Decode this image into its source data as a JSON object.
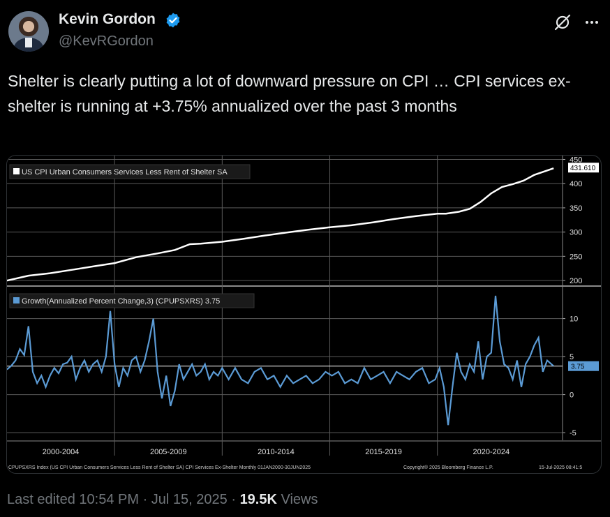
{
  "author": {
    "name": "Kevin Gordon",
    "handle": "@KevRGordon"
  },
  "tweet": {
    "text": "Shelter is clearly putting a lot of downward pressure on CPI … CPI services ex-shelter is running at +3.75% annualized over the past 3 months"
  },
  "icons": {
    "verified": "verified-badge-icon",
    "grok": "grok-icon",
    "more": "more-dots-icon"
  },
  "colors": {
    "accent_blue": "#1d9bf0",
    "index_line": "#ffffff",
    "growth_line": "#5b9bd5"
  },
  "footer": {
    "edited": "Last edited 10:54 PM",
    "date": "Jul 15, 2025",
    "views_count": "19.5K",
    "views_label": "Views"
  },
  "chart_data": {
    "type": "line",
    "period_labels": [
      "2000-2004",
      "2005-2009",
      "2010-2014",
      "2015-2019",
      "2020-2024"
    ],
    "upper_panel": {
      "legend": "US CPI Urban Consumers Services Less Rent of Shelter SA",
      "y_ticks": [
        "450",
        "400",
        "350",
        "300",
        "250",
        "200"
      ],
      "ylim": [
        190,
        455
      ],
      "last_value": "431.610",
      "series": {
        "name": "US CPI Urban Consumers Services Less Rent of Shelter SA",
        "x": [
          2000.0,
          2001.0,
          2002.0,
          2003.0,
          2004.0,
          2005.0,
          2006.0,
          2007.0,
          2007.8,
          2008.5,
          2009.0,
          2010.0,
          2011.0,
          2012.0,
          2013.0,
          2014.0,
          2015.0,
          2016.0,
          2017.0,
          2018.0,
          2019.0,
          2020.0,
          2020.4,
          2021.0,
          2021.5,
          2022.0,
          2022.5,
          2023.0,
          2023.5,
          2024.0,
          2024.5,
          2025.4
        ],
        "y": [
          200,
          210,
          215,
          222,
          229,
          236,
          248,
          256,
          263,
          275,
          276,
          280,
          286,
          293,
          299,
          305,
          310,
          314,
          320,
          327,
          333,
          338,
          338,
          342,
          348,
          362,
          380,
          393,
          399,
          406,
          418,
          431.61
        ]
      }
    },
    "lower_panel": {
      "legend": "Growth(Annualized Percent Change,3) (CPUPSXRS) 3.75",
      "y_ticks": [
        "10",
        "5",
        "0",
        "-5"
      ],
      "ylim": [
        -6,
        14
      ],
      "last_value": "3.75",
      "series": {
        "name": "Growth(Annualized Percent Change,3) (CPUPSXRS)",
        "x": [
          2000.0,
          2000.2,
          2000.4,
          2000.6,
          2000.8,
          2001.0,
          2001.2,
          2001.4,
          2001.6,
          2001.8,
          2002.0,
          2002.2,
          2002.4,
          2002.6,
          2002.8,
          2003.0,
          2003.2,
          2003.4,
          2003.6,
          2003.8,
          2004.0,
          2004.2,
          2004.4,
          2004.6,
          2004.8,
          2005.0,
          2005.2,
          2005.4,
          2005.6,
          2005.8,
          2006.0,
          2006.2,
          2006.4,
          2006.6,
          2006.8,
          2007.0,
          2007.2,
          2007.4,
          2007.6,
          2007.8,
          2008.0,
          2008.2,
          2008.4,
          2008.6,
          2008.8,
          2009.0,
          2009.2,
          2009.4,
          2009.6,
          2009.8,
          2010.0,
          2010.3,
          2010.6,
          2010.9,
          2011.2,
          2011.5,
          2011.8,
          2012.1,
          2012.4,
          2012.7,
          2013.0,
          2013.3,
          2013.6,
          2013.9,
          2014.2,
          2014.5,
          2014.8,
          2015.1,
          2015.4,
          2015.7,
          2016.0,
          2016.3,
          2016.6,
          2016.9,
          2017.2,
          2017.5,
          2017.8,
          2018.1,
          2018.4,
          2018.7,
          2019.0,
          2019.3,
          2019.6,
          2019.9,
          2020.1,
          2020.3,
          2020.5,
          2020.7,
          2020.9,
          2021.1,
          2021.3,
          2021.5,
          2021.7,
          2021.9,
          2022.1,
          2022.3,
          2022.5,
          2022.7,
          2022.9,
          2023.1,
          2023.3,
          2023.5,
          2023.7,
          2023.9,
          2024.1,
          2024.3,
          2024.5,
          2024.7,
          2024.9,
          2025.1,
          2025.4
        ],
        "y": [
          3.3,
          3.8,
          4.5,
          6.0,
          5.2,
          9.0,
          3.0,
          1.5,
          2.5,
          1.0,
          2.5,
          3.5,
          2.8,
          4.0,
          4.2,
          5.0,
          2.0,
          3.5,
          4.5,
          3.0,
          4.0,
          4.5,
          3.0,
          5.0,
          11.0,
          4.0,
          1.0,
          3.5,
          2.5,
          4.5,
          5.0,
          3.0,
          4.5,
          7.0,
          10.0,
          3.0,
          -0.5,
          2.5,
          -1.5,
          0.5,
          4.0,
          2.0,
          3.0,
          4.0,
          2.5,
          3.0,
          4.0,
          2.0,
          3.0,
          2.5,
          3.5,
          2.0,
          3.5,
          2.0,
          1.5,
          3.0,
          3.5,
          2.0,
          2.5,
          1.0,
          2.5,
          1.5,
          2.0,
          2.5,
          1.5,
          2.0,
          3.0,
          2.5,
          3.0,
          1.5,
          2.0,
          1.5,
          3.5,
          2.0,
          2.5,
          3.0,
          1.5,
          3.0,
          2.5,
          2.0,
          3.0,
          3.5,
          1.5,
          2.0,
          3.5,
          1.0,
          -4.0,
          1.0,
          5.5,
          3.0,
          2.0,
          4.0,
          3.0,
          7.0,
          2.0,
          5.0,
          5.5,
          13.0,
          7.0,
          4.0,
          3.5,
          2.0,
          4.5,
          1.0,
          4.0,
          5.0,
          6.5,
          7.5,
          3.0,
          4.5,
          3.75
        ]
      }
    },
    "source_footnote": "CPUPSXRS Index (US CPI Urban Consumers Services Less Rent of Shelter SA) CPI Services Ex-Shelter  Monthly 01JAN2000-30JUN2025",
    "copyright": "Copyright® 2025 Bloomberg Finance L.P.",
    "timestamp": "15-Jul-2025 08:41:5"
  }
}
